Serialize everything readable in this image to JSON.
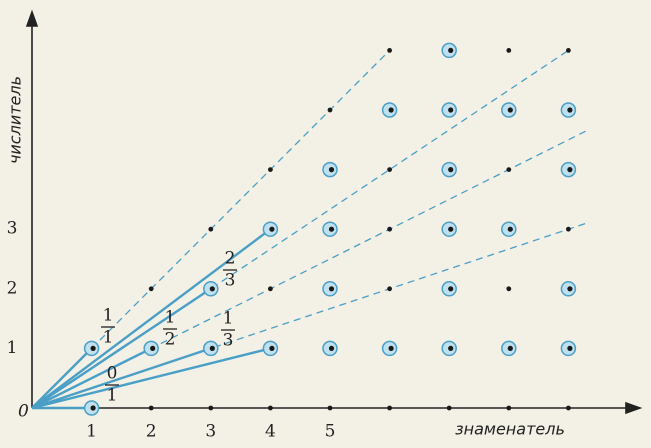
{
  "axes": {
    "y_label": "числитель",
    "x_label": "знаменатель",
    "origin": "0",
    "xticks": [
      1,
      2,
      3,
      4,
      5
    ],
    "yticks": [
      1,
      2,
      3
    ]
  },
  "fractions": [
    {
      "numerator": "1",
      "denominator": "1"
    },
    {
      "numerator": "1",
      "denominator": "2"
    },
    {
      "numerator": "2",
      "denominator": "3"
    },
    {
      "numerator": "1",
      "denominator": "3"
    },
    {
      "numerator": "0",
      "denominator": "1"
    }
  ]
}
